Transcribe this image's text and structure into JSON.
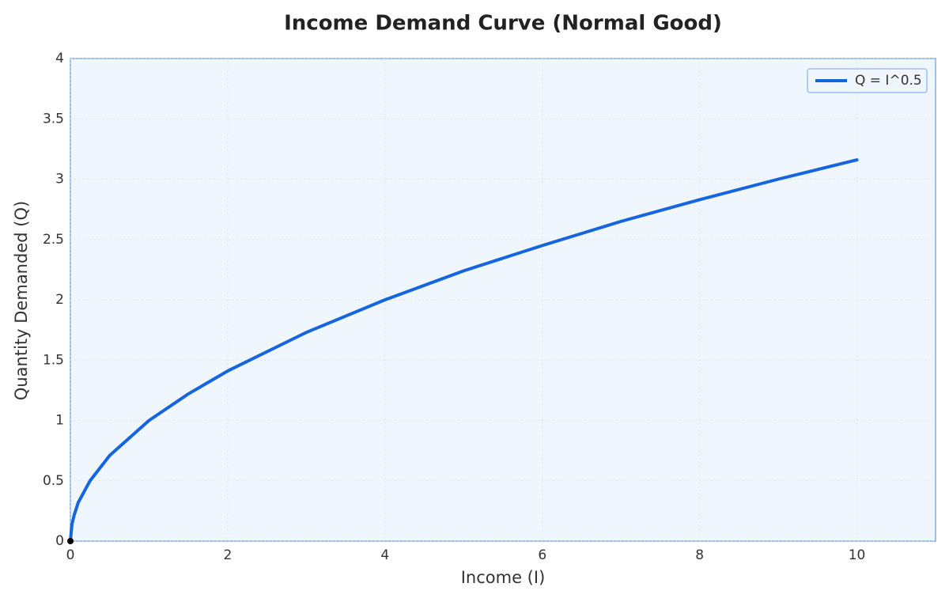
{
  "chart_data": {
    "type": "line",
    "title": "Income Demand Curve (Normal Good)",
    "x_label": "Income (I)",
    "y_label": "Quantity Demanded (Q)",
    "x": [
      0,
      0.02,
      0.05,
      0.1,
      0.25,
      0.5,
      1,
      1.5,
      2,
      3,
      4,
      5,
      6,
      7,
      8,
      9,
      10
    ],
    "series": [
      {
        "name": "Q = I^0.5",
        "color": "#1565e0",
        "values": [
          0,
          0.14,
          0.22,
          0.32,
          0.5,
          0.71,
          1,
          1.22,
          1.41,
          1.73,
          2,
          2.24,
          2.45,
          2.65,
          2.83,
          3,
          3.16
        ]
      }
    ],
    "points": {
      "x": [
        0
      ],
      "y": [
        0
      ],
      "color": "#000000"
    },
    "xlim": [
      0,
      11
    ],
    "ylim": [
      0,
      4
    ],
    "xticks": [
      0,
      2,
      4,
      6,
      8,
      10
    ],
    "yticks": [
      0,
      0.5,
      1,
      1.5,
      2,
      2.5,
      3,
      3.5,
      4
    ],
    "grid": true,
    "legend": "upper right"
  }
}
